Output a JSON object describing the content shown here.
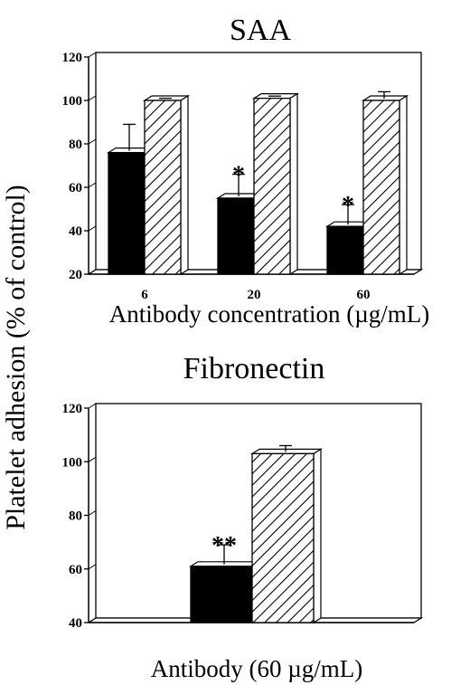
{
  "ylabel": "Platelet adhesion (% of control)",
  "chart_data": [
    {
      "type": "bar",
      "title": "SAA",
      "xlabel": "Antibody concentration (µg/mL)",
      "categories": [
        "6",
        "20",
        "60"
      ],
      "ylim": [
        20,
        120
      ],
      "yticks": [
        20,
        40,
        60,
        80,
        100,
        120
      ],
      "series": [
        {
          "style": "solid-black",
          "values": [
            76,
            55,
            42
          ],
          "errors": [
            13,
            11,
            10
          ]
        },
        {
          "style": "diagonal-hatch",
          "values": [
            100,
            101,
            100
          ],
          "errors": [
            1,
            1,
            4
          ]
        }
      ],
      "annotations": [
        "",
        "*",
        "*"
      ]
    },
    {
      "type": "bar",
      "title": "Fibronectin",
      "xlabel": "Antibody (60 µg/mL)",
      "categories": [
        ""
      ],
      "ylim": [
        40,
        120
      ],
      "yticks": [
        40,
        60,
        80,
        100,
        120
      ],
      "series": [
        {
          "style": "solid-black",
          "values": [
            61
          ],
          "errors": [
            8
          ]
        },
        {
          "style": "diagonal-hatch",
          "values": [
            103
          ],
          "errors": [
            3
          ]
        }
      ],
      "annotations": [
        "**"
      ]
    }
  ]
}
